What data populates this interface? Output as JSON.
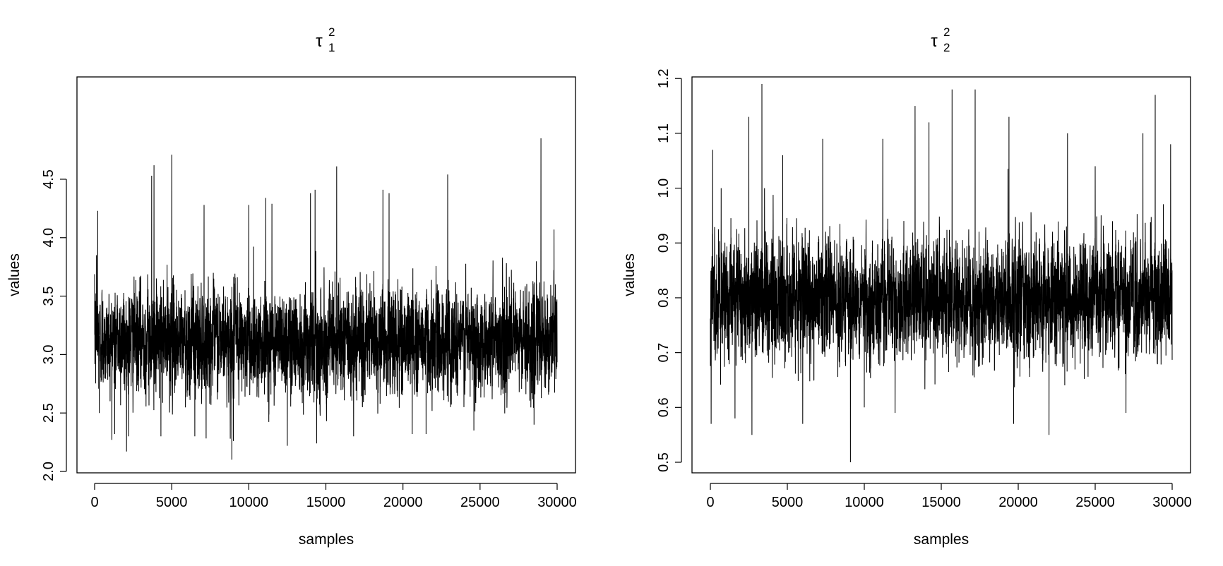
{
  "chart_data": [
    {
      "type": "line",
      "title": "τ",
      "title_subscript": "1",
      "title_superscript": "2",
      "xlabel": "samples",
      "ylabel": "values",
      "xlim": [
        0,
        30000
      ],
      "ylim": [
        2.0,
        4.85
      ],
      "x_ticks": [
        0,
        5000,
        10000,
        15000,
        20000,
        25000,
        30000
      ],
      "x_tick_labels": [
        "0",
        "5000",
        "10000",
        "15000",
        "20000",
        "25000",
        "30000"
      ],
      "y_ticks": [
        2.0,
        2.5,
        3.0,
        3.5,
        4.0,
        4.5
      ],
      "y_tick_labels": [
        "2.0",
        "2.5",
        "3.0",
        "3.5",
        "4.0",
        "4.5"
      ],
      "grid": false,
      "series": [
        {
          "color": "#000000",
          "n_samples": 30000,
          "center": 3.12,
          "band": [
            2.7,
            3.6
          ],
          "peaks": [
            {
              "x": 120,
              "y": 3.85
            },
            {
              "x": 200,
              "y": 4.23
            },
            {
              "x": 300,
              "y": 2.5
            },
            {
              "x": 1300,
              "y": 2.32
            },
            {
              "x": 2200,
              "y": 2.3
            },
            {
              "x": 3700,
              "y": 4.53
            },
            {
              "x": 3850,
              "y": 4.62
            },
            {
              "x": 4300,
              "y": 2.3
            },
            {
              "x": 5000,
              "y": 4.71
            },
            {
              "x": 6500,
              "y": 2.3
            },
            {
              "x": 7100,
              "y": 4.28
            },
            {
              "x": 8800,
              "y": 2.28
            },
            {
              "x": 8900,
              "y": 2.1
            },
            {
              "x": 9000,
              "y": 2.26
            },
            {
              "x": 10000,
              "y": 4.28
            },
            {
              "x": 11100,
              "y": 4.34
            },
            {
              "x": 11500,
              "y": 4.29
            },
            {
              "x": 12500,
              "y": 2.22
            },
            {
              "x": 14000,
              "y": 4.38
            },
            {
              "x": 14300,
              "y": 4.41
            },
            {
              "x": 14400,
              "y": 2.24
            },
            {
              "x": 15700,
              "y": 4.61
            },
            {
              "x": 16800,
              "y": 2.3
            },
            {
              "x": 18700,
              "y": 4.41
            },
            {
              "x": 19100,
              "y": 4.38
            },
            {
              "x": 20600,
              "y": 2.32
            },
            {
              "x": 21500,
              "y": 2.32
            },
            {
              "x": 22900,
              "y": 4.54
            },
            {
              "x": 24600,
              "y": 2.35
            },
            {
              "x": 28500,
              "y": 2.4
            },
            {
              "x": 28950,
              "y": 4.85
            },
            {
              "x": 29800,
              "y": 4.07
            }
          ]
        }
      ]
    },
    {
      "type": "line",
      "title": "τ",
      "title_subscript": "2",
      "title_superscript": "2",
      "xlabel": "samples",
      "ylabel": "values",
      "xlim": [
        0,
        30000
      ],
      "ylim": [
        0.5,
        1.19
      ],
      "x_ticks": [
        0,
        5000,
        10000,
        15000,
        20000,
        25000,
        30000
      ],
      "x_tick_labels": [
        "0",
        "5000",
        "10000",
        "15000",
        "20000",
        "25000",
        "30000"
      ],
      "y_ticks": [
        0.5,
        0.6,
        0.7,
        0.8,
        0.9,
        1.0,
        1.1,
        1.2
      ],
      "y_tick_labels": [
        "0.5",
        "0.6",
        "0.7",
        "0.8",
        "0.9",
        "1.0",
        "1.1",
        "1.2"
      ],
      "grid": false,
      "series": [
        {
          "color": "#000000",
          "n_samples": 30000,
          "center": 0.8,
          "band": [
            0.7,
            0.92
          ],
          "peaks": [
            {
              "x": 50,
              "y": 0.57
            },
            {
              "x": 150,
              "y": 1.07
            },
            {
              "x": 700,
              "y": 1.0
            },
            {
              "x": 1600,
              "y": 0.58
            },
            {
              "x": 2500,
              "y": 1.13
            },
            {
              "x": 2700,
              "y": 0.55
            },
            {
              "x": 3350,
              "y": 1.19
            },
            {
              "x": 4700,
              "y": 1.06
            },
            {
              "x": 6000,
              "y": 0.57
            },
            {
              "x": 7300,
              "y": 1.09
            },
            {
              "x": 9100,
              "y": 0.5
            },
            {
              "x": 10000,
              "y": 0.6
            },
            {
              "x": 11200,
              "y": 1.09
            },
            {
              "x": 12000,
              "y": 0.59
            },
            {
              "x": 13300,
              "y": 1.15
            },
            {
              "x": 14200,
              "y": 1.12
            },
            {
              "x": 15700,
              "y": 1.18
            },
            {
              "x": 17200,
              "y": 1.18
            },
            {
              "x": 19400,
              "y": 1.13
            },
            {
              "x": 19700,
              "y": 0.57
            },
            {
              "x": 22000,
              "y": 0.55
            },
            {
              "x": 23200,
              "y": 1.1
            },
            {
              "x": 25000,
              "y": 1.04
            },
            {
              "x": 27000,
              "y": 0.59
            },
            {
              "x": 28100,
              "y": 1.1
            },
            {
              "x": 28900,
              "y": 1.17
            },
            {
              "x": 29900,
              "y": 1.08
            }
          ]
        }
      ]
    }
  ]
}
